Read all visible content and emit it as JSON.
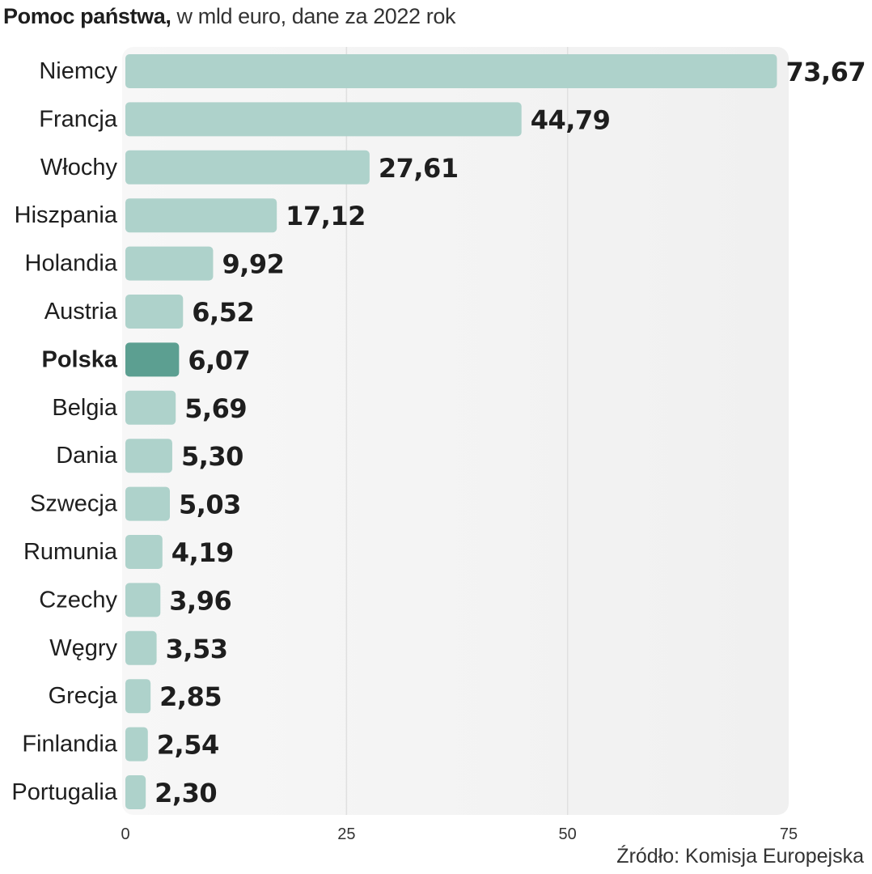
{
  "title": {
    "bold": "Pomoc państwa,",
    "rest": " w mld euro, dane za 2022 rok"
  },
  "source": "Źródło: Komisja Europejska",
  "colors": {
    "bar": "#aed2cb",
    "bar_highlight": "#5c9f91",
    "panel": "#f0f0f0",
    "grid": "#e0e0e0",
    "text": "#1e1e1e",
    "axis_text": "#333333"
  },
  "chart_data": {
    "type": "bar",
    "orientation": "horizontal",
    "categories": [
      "Niemcy",
      "Francja",
      "Włochy",
      "Hiszpania",
      "Holandia",
      "Austria",
      "Polska",
      "Belgia",
      "Dania",
      "Szwecja",
      "Rumunia",
      "Czechy",
      "Węgry",
      "Grecja",
      "Finlandia",
      "Portugalia"
    ],
    "values": [
      73.67,
      44.79,
      27.61,
      17.12,
      9.92,
      6.52,
      6.07,
      5.69,
      5.3,
      5.03,
      4.19,
      3.96,
      3.53,
      2.85,
      2.54,
      2.3
    ],
    "value_labels": [
      "73,67",
      "44,79",
      "27,61",
      "17,12",
      "9,92",
      "6,52",
      "6,07",
      "5,69",
      "5,30",
      "5,03",
      "4,19",
      "3,96",
      "3,53",
      "2,85",
      "2,54",
      "2,30"
    ],
    "highlight": "Polska",
    "xlim": [
      0,
      75
    ],
    "xticks": [
      0,
      25,
      50,
      75
    ],
    "grid": true,
    "xlabel": "",
    "ylabel": ""
  }
}
